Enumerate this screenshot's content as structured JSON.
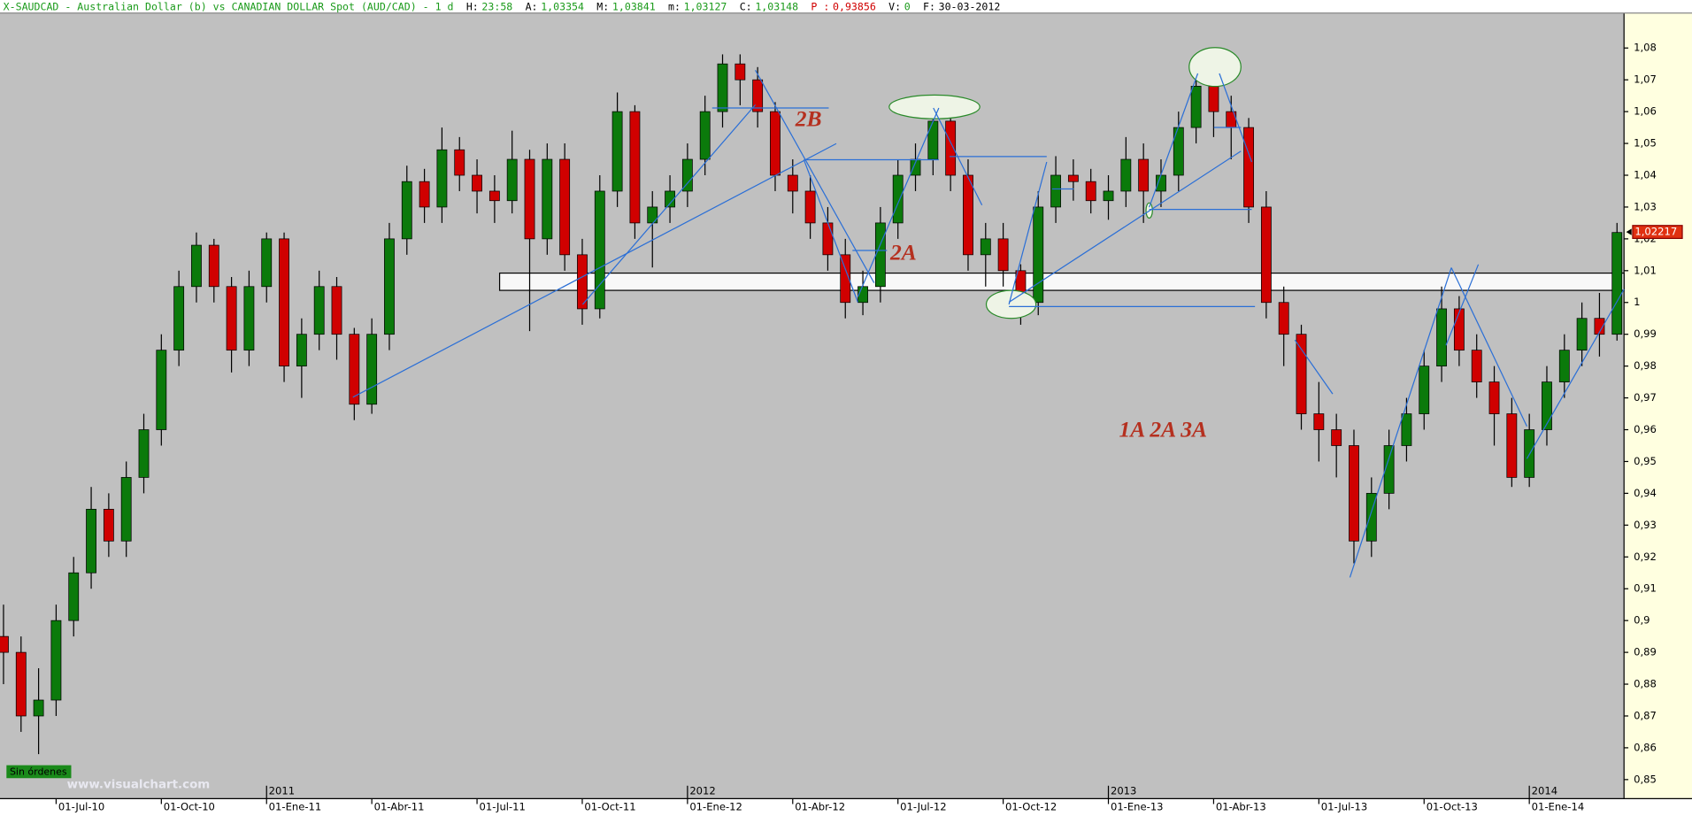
{
  "header": {
    "title": "X-SAUDCAD - Australian Dollar (b) vs CANADIAN DOLLAR Spot (AUD/CAD) -  1 d",
    "fields": [
      {
        "label": "H:",
        "value": "23:58"
      },
      {
        "label": "A:",
        "value": "1,03354"
      },
      {
        "label": "M:",
        "value": "1,03841"
      },
      {
        "label": "m:",
        "value": "1,03127"
      },
      {
        "label": "C:",
        "value": "1,03148"
      },
      {
        "label": "P :",
        "value": "0,93856"
      },
      {
        "label": "V:",
        "value": "0"
      },
      {
        "label": "F:",
        "value": "30-03-2012"
      }
    ]
  },
  "chart_data": {
    "type": "candlestick",
    "up_color": "#0b7a0b",
    "down_color": "#d00000",
    "x": [
      -1.5,
      -1,
      -0.5,
      0,
      0.5,
      1,
      1.5,
      2,
      2.5,
      3,
      3.5,
      4,
      4.5,
      5,
      5.5,
      6,
      6.5,
      7,
      7.5,
      8,
      8.5,
      9,
      9.5,
      10,
      10.5,
      11,
      11.5,
      12,
      12.5,
      13,
      13.5,
      14,
      14.5,
      15,
      15.5,
      16,
      16.5,
      17,
      17.5,
      18,
      18.5,
      19,
      19.5,
      20,
      20.5,
      21,
      21.5,
      22,
      22.5,
      23,
      23.5,
      24,
      24.5,
      25,
      25.5,
      26,
      26.5,
      27,
      27.5,
      28,
      28.5,
      29,
      29.5,
      30,
      30.5,
      31,
      31.5,
      32,
      32.5,
      33,
      33.5,
      34,
      34.5,
      35,
      35.5,
      36,
      36.5,
      37,
      37.5,
      38,
      38.5,
      39,
      39.5,
      40,
      40.5,
      41,
      41.5,
      42,
      42.5,
      43,
      43.5,
      44,
      44.5
    ],
    "open": [
      0.895,
      0.89,
      0.87,
      0.875,
      0.9,
      0.915,
      0.935,
      0.925,
      0.945,
      0.96,
      0.985,
      1.005,
      1.018,
      1.005,
      0.985,
      1.005,
      1.02,
      0.98,
      0.99,
      1.005,
      0.99,
      0.968,
      0.99,
      1.02,
      1.038,
      1.03,
      1.048,
      1.04,
      1.035,
      1.032,
      1.045,
      1.02,
      1.045,
      1.015,
      0.998,
      1.035,
      1.06,
      1.025,
      1.03,
      1.035,
      1.045,
      1.06,
      1.075,
      1.07,
      1.06,
      1.04,
      1.035,
      1.025,
      1.015,
      1.0,
      1.005,
      1.025,
      1.04,
      1.045,
      1.057,
      1.04,
      1.015,
      1.02,
      1.01,
      1.0,
      1.03,
      1.04,
      1.038,
      1.032,
      1.035,
      1.045,
      1.035,
      1.04,
      1.055,
      1.068,
      1.06,
      1.055,
      1.03,
      1.0,
      0.99,
      0.965,
      0.96,
      0.955,
      0.925,
      0.94,
      0.955,
      0.965,
      0.98,
      0.998,
      0.985,
      0.975,
      0.965,
      0.945,
      0.96,
      0.975,
      0.985,
      0.995,
      0.99
    ],
    "high": [
      0.905,
      0.895,
      0.885,
      0.905,
      0.92,
      0.942,
      0.94,
      0.95,
      0.965,
      0.99,
      1.01,
      1.022,
      1.02,
      1.008,
      1.01,
      1.022,
      1.022,
      0.995,
      1.01,
      1.008,
      0.992,
      0.995,
      1.025,
      1.043,
      1.042,
      1.055,
      1.052,
      1.045,
      1.04,
      1.054,
      1.048,
      1.05,
      1.05,
      1.02,
      1.04,
      1.066,
      1.062,
      1.035,
      1.04,
      1.05,
      1.065,
      1.078,
      1.078,
      1.074,
      1.063,
      1.045,
      1.04,
      1.03,
      1.02,
      1.01,
      1.03,
      1.045,
      1.05,
      1.059,
      1.06,
      1.045,
      1.025,
      1.025,
      1.012,
      1.035,
      1.046,
      1.045,
      1.042,
      1.04,
      1.052,
      1.05,
      1.045,
      1.06,
      1.072,
      1.072,
      1.065,
      1.058,
      1.035,
      1.005,
      0.993,
      0.975,
      0.965,
      0.96,
      0.945,
      0.96,
      0.97,
      0.985,
      1.005,
      1.002,
      0.99,
      0.98,
      0.97,
      0.965,
      0.98,
      0.99,
      1.0,
      1.003,
      1.025
    ],
    "low": [
      0.88,
      0.865,
      0.858,
      0.87,
      0.895,
      0.91,
      0.92,
      0.92,
      0.94,
      0.955,
      0.98,
      1.0,
      1.0,
      0.978,
      0.98,
      1.0,
      0.975,
      0.97,
      0.985,
      0.982,
      0.963,
      0.965,
      0.985,
      1.015,
      1.025,
      1.025,
      1.035,
      1.028,
      1.025,
      1.028,
      0.991,
      1.015,
      1.01,
      0.993,
      0.995,
      1.03,
      1.02,
      1.011,
      1.025,
      1.03,
      1.04,
      1.055,
      1.062,
      1.055,
      1.035,
      1.028,
      1.02,
      1.01,
      0.995,
      0.996,
      1.0,
      1.02,
      1.035,
      1.04,
      1.035,
      1.01,
      1.005,
      1.005,
      0.993,
      0.996,
      1.025,
      1.032,
      1.028,
      1.026,
      1.03,
      1.025,
      1.03,
      1.035,
      1.05,
      1.052,
      1.045,
      1.025,
      0.995,
      0.98,
      0.96,
      0.95,
      0.945,
      0.918,
      0.92,
      0.935,
      0.95,
      0.96,
      0.975,
      0.98,
      0.97,
      0.955,
      0.942,
      0.942,
      0.955,
      0.97,
      0.98,
      0.983,
      0.988
    ],
    "close": [
      0.89,
      0.87,
      0.875,
      0.9,
      0.915,
      0.935,
      0.925,
      0.945,
      0.96,
      0.985,
      1.005,
      1.018,
      1.005,
      0.985,
      1.005,
      1.02,
      0.98,
      0.99,
      1.005,
      0.99,
      0.968,
      0.99,
      1.02,
      1.038,
      1.03,
      1.048,
      1.04,
      1.035,
      1.032,
      1.045,
      1.02,
      1.045,
      1.015,
      0.998,
      1.035,
      1.06,
      1.025,
      1.03,
      1.035,
      1.045,
      1.06,
      1.075,
      1.07,
      1.06,
      1.04,
      1.035,
      1.025,
      1.015,
      1.0,
      1.005,
      1.025,
      1.04,
      1.045,
      1.057,
      1.04,
      1.015,
      1.02,
      1.01,
      1.0,
      1.03,
      1.04,
      1.038,
      1.032,
      1.035,
      1.045,
      1.035,
      1.04,
      1.055,
      1.068,
      1.06,
      1.055,
      1.03,
      1.0,
      0.99,
      0.965,
      0.96,
      0.955,
      0.925,
      0.94,
      0.955,
      0.965,
      0.98,
      0.998,
      0.985,
      0.975,
      0.965,
      0.945,
      0.96,
      0.975,
      0.985,
      0.995,
      0.99,
      1.022
    ],
    "xlim": [
      -1.6,
      44.7
    ],
    "xticks": [
      {
        "value": 0,
        "label": "01-Jul-10"
      },
      {
        "value": 3,
        "label": "01-Oct-10"
      },
      {
        "value": 6,
        "label": "01-Ene-11"
      },
      {
        "value": 9,
        "label": "01-Abr-11"
      },
      {
        "value": 12,
        "label": "01-Jul-11"
      },
      {
        "value": 15,
        "label": "01-Oct-11"
      },
      {
        "value": 18,
        "label": "01-Ene-12"
      },
      {
        "value": 21,
        "label": "01-Abr-12"
      },
      {
        "value": 24,
        "label": "01-Jul-12"
      },
      {
        "value": 27,
        "label": "01-Oct-12"
      },
      {
        "value": 30,
        "label": "01-Ene-13"
      },
      {
        "value": 33,
        "label": "01-Abr-13"
      },
      {
        "value": 36,
        "label": "01-Jul-13"
      },
      {
        "value": 39,
        "label": "01-Oct-13"
      },
      {
        "value": 42,
        "label": "01-Ene-14"
      }
    ],
    "year_ticks": [
      {
        "value": 6,
        "label": "2011"
      },
      {
        "value": 18,
        "label": "2012"
      },
      {
        "value": 30,
        "label": "2013"
      },
      {
        "value": 42,
        "label": "2014"
      }
    ],
    "ylim": [
      0.844,
      1.091
    ],
    "yticks": [
      {
        "value": 0.85,
        "label": "0,85"
      },
      {
        "value": 0.86,
        "label": "0,86"
      },
      {
        "value": 0.87,
        "label": "0,87"
      },
      {
        "value": 0.88,
        "label": "0,88"
      },
      {
        "value": 0.89,
        "label": "0,89"
      },
      {
        "value": 0.9,
        "label": "0,9"
      },
      {
        "value": 0.91,
        "label": "0,91"
      },
      {
        "value": 0.92,
        "label": "0,92"
      },
      {
        "value": 0.93,
        "label": "0,93"
      },
      {
        "value": 0.94,
        "label": "0,94"
      },
      {
        "value": 0.95,
        "label": "0,95"
      },
      {
        "value": 0.96,
        "label": "0,96"
      },
      {
        "value": 0.97,
        "label": "0,97"
      },
      {
        "value": 0.98,
        "label": "0,98"
      },
      {
        "value": 0.99,
        "label": "0,99"
      },
      {
        "value": 1,
        "label": "1"
      },
      {
        "value": 1.01,
        "label": "1,01"
      },
      {
        "value": 1.02,
        "label": "1,02"
      },
      {
        "value": 1.03,
        "label": "1,03"
      },
      {
        "value": 1.04,
        "label": "1,04"
      },
      {
        "value": 1.05,
        "label": "1,05"
      },
      {
        "value": 1.06,
        "label": "1,06"
      },
      {
        "value": 1.07,
        "label": "1,07"
      },
      {
        "value": 1.08,
        "label": "1,08"
      }
    ],
    "last_price": {
      "value": 1.02217,
      "label": "1,02217"
    },
    "annotations": [
      "2B",
      "2A",
      "1A 2A 3A"
    ]
  },
  "footer": {
    "status": "Sin órdenes",
    "watermark": "www.visualchart.com"
  }
}
